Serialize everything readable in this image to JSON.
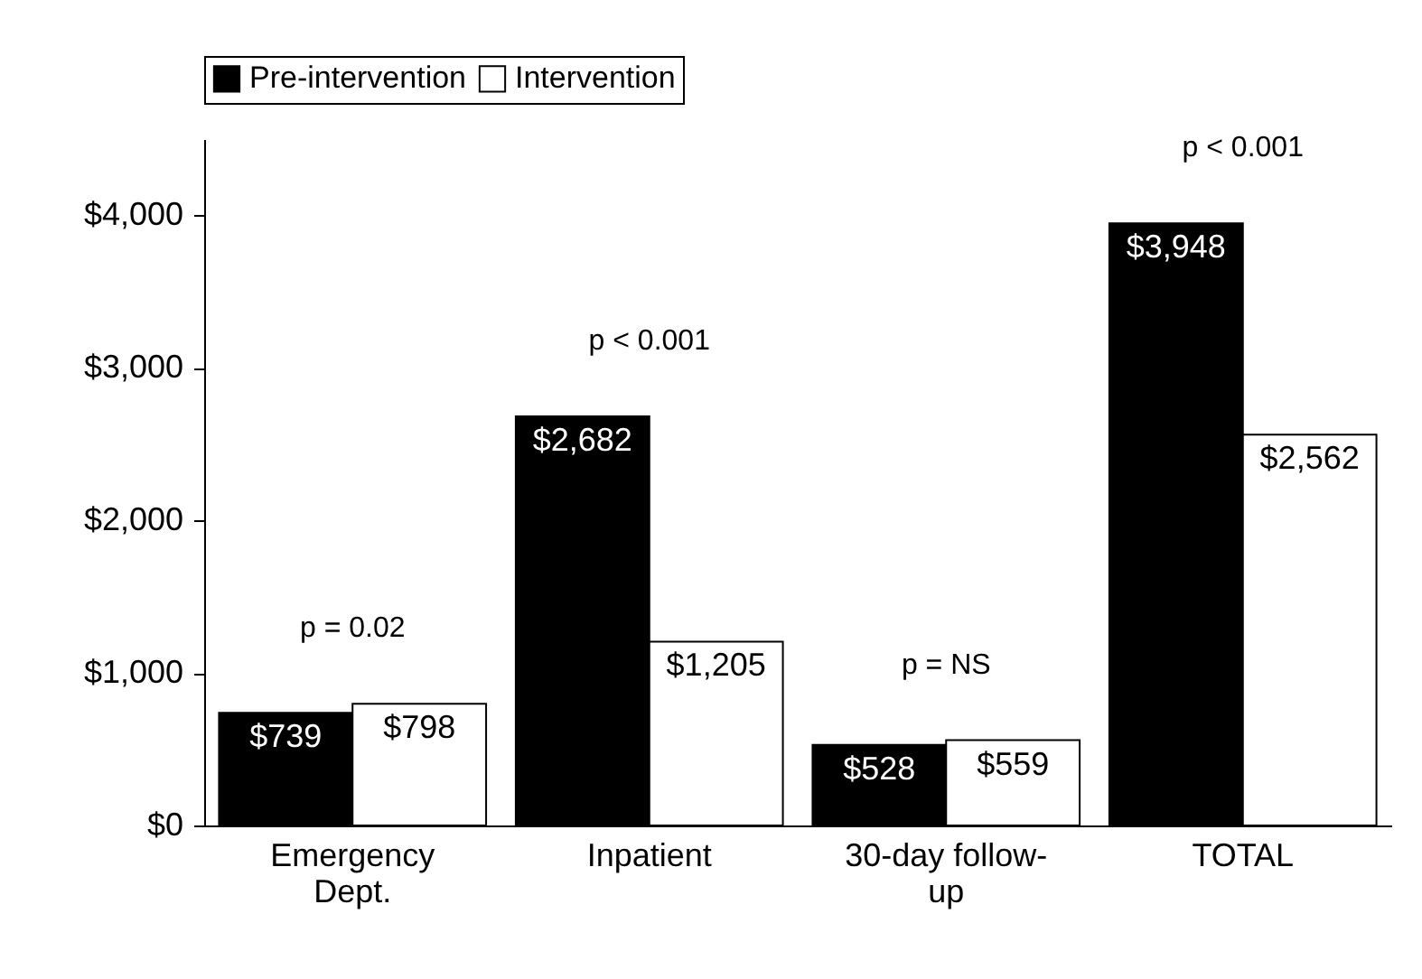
{
  "chart_data": {
    "type": "bar",
    "categories": [
      "Emergency Dept.",
      "Inpatient",
      "30-day follow-up",
      "TOTAL"
    ],
    "series": [
      {
        "name": "Pre-intervention",
        "color": "#000000",
        "values": [
          739,
          2682,
          528,
          3948
        ],
        "value_labels": [
          "$739",
          "$2,682",
          "$528",
          "$3,948"
        ]
      },
      {
        "name": "Intervention",
        "color": "#ffffff",
        "values": [
          798,
          1205,
          559,
          2562
        ],
        "value_labels": [
          "$798",
          "$1,205",
          "$559",
          "$2,562"
        ]
      }
    ],
    "ylim": [
      0,
      4500
    ],
    "yticks": [
      {
        "value": 0,
        "label": "$0"
      },
      {
        "value": 1000,
        "label": "$1,000"
      },
      {
        "value": 2000,
        "label": "$2,000"
      },
      {
        "value": 3000,
        "label": "$3,000"
      },
      {
        "value": 4000,
        "label": "$4,000"
      }
    ],
    "grid": false,
    "legend": "top",
    "annotations": [
      "p = 0.02",
      "p < 0.001",
      "p = NS",
      "p < 0.001"
    ]
  }
}
